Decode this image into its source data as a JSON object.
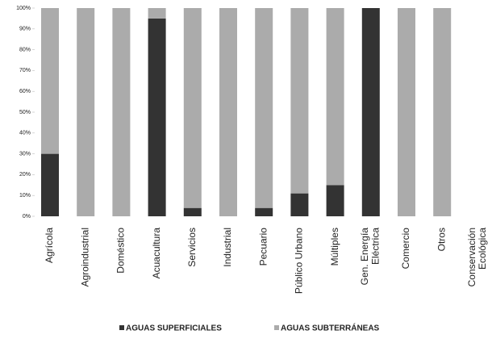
{
  "chart_data": {
    "type": "stacked_bar",
    "categories": [
      "Agrícola",
      "Agroindustrial",
      "Doméstico",
      "Acuacultura",
      "Servicios",
      "Industrial",
      "Pecuario",
      "Público Urbano",
      "Múltiples",
      "Gen. Energía\nEléctrica",
      "Comercio",
      "Otros",
      "Conservación\nEcológica"
    ],
    "series": [
      {
        "name": "AGUAS SUPERFICIALES",
        "color": "#333333",
        "values": [
          30,
          0,
          0,
          95,
          4,
          0,
          4,
          11,
          15,
          100,
          0,
          0,
          0
        ]
      },
      {
        "name": "AGUAS SUBTERRÁNEAS",
        "color": "#ababab",
        "values": [
          70,
          100,
          100,
          5,
          96,
          100,
          96,
          89,
          85,
          0,
          100,
          100,
          0
        ]
      }
    ],
    "ylim": [
      0,
      100
    ],
    "yticks": [
      {
        "value": 0,
        "label": "0%"
      },
      {
        "value": 10,
        "label": "10%"
      },
      {
        "value": 20,
        "label": "20%"
      },
      {
        "value": 30,
        "label": "30%"
      },
      {
        "value": 40,
        "label": "40%"
      },
      {
        "value": 50,
        "label": "50%"
      },
      {
        "value": 60,
        "label": "60%"
      },
      {
        "value": 70,
        "label": "70%"
      },
      {
        "value": 80,
        "label": "80%"
      },
      {
        "value": 90,
        "label": "90%"
      },
      {
        "value": 100,
        "label": "100%"
      }
    ],
    "grid": false,
    "legend": "bottom"
  }
}
